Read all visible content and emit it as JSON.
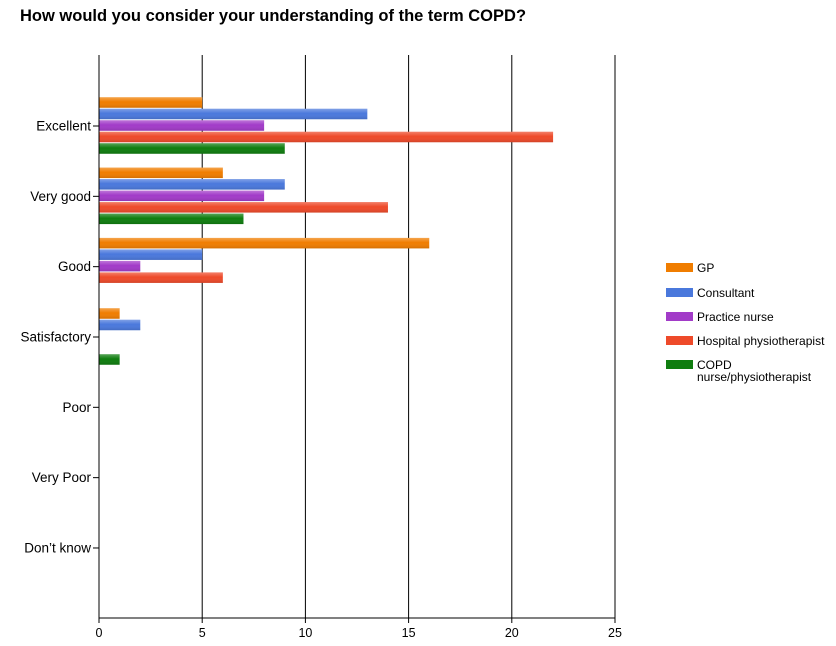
{
  "chart_data": {
    "type": "bar",
    "orientation": "horizontal",
    "title": "How would you consider your understanding of the term COPD?",
    "xlabel": "",
    "ylabel": "",
    "categories": [
      "Excellent",
      "Very good",
      "Good",
      "Satisfactory",
      "Poor",
      "Very Poor",
      "Don’t know"
    ],
    "series": [
      {
        "name": "GP",
        "color": "#f07d00",
        "values": [
          5,
          6,
          16,
          1,
          0,
          0,
          0
        ]
      },
      {
        "name": "Consultant",
        "color": "#4a78dc",
        "values": [
          13,
          9,
          5,
          2,
          0,
          0,
          0
        ]
      },
      {
        "name": "Practice nurse",
        "color": "#a23bc8",
        "values": [
          8,
          8,
          2,
          0,
          0,
          0,
          0
        ]
      },
      {
        "name": "Hospital physiotherapist",
        "color": "#ee4a2a",
        "values": [
          22,
          14,
          6,
          0,
          0,
          0,
          0
        ]
      },
      {
        "name": "COPD nurse/physiotherapist",
        "color": "#0f7d0f",
        "values": [
          9,
          7,
          0,
          1,
          0,
          0,
          0
        ]
      }
    ],
    "xlim": [
      0,
      25
    ],
    "xticks": [
      "0",
      "5",
      "10",
      "15",
      "20",
      "25"
    ],
    "grid": true,
    "legend_position": "right"
  }
}
